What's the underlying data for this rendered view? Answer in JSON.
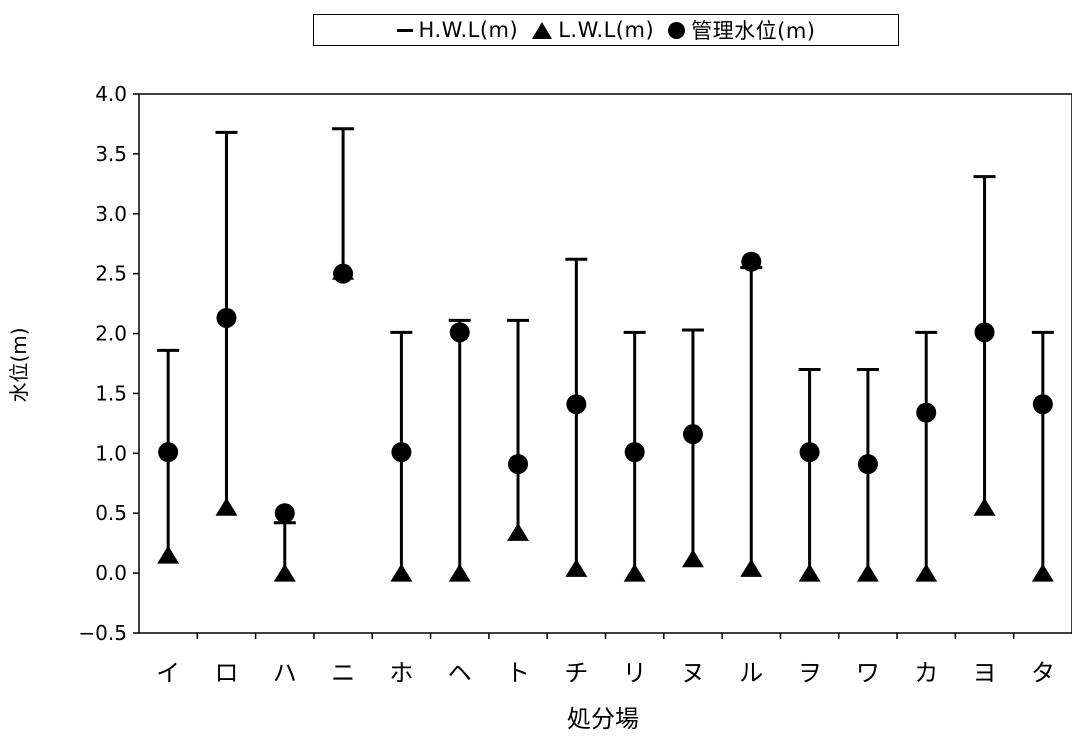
{
  "chart_data": {
    "type": "scatter",
    "xlabel": "処分場",
    "ylabel": "水位(m)",
    "ylim": [
      -0.5,
      4.0
    ],
    "yticks": [
      "4.0",
      "3.5",
      "3.0",
      "2.5",
      "2.0",
      "1.5",
      "1.0",
      "0.5",
      "0.0",
      "-0.5"
    ],
    "categories": [
      "イ",
      "ロ",
      "ハ",
      "ニ",
      "ホ",
      "ヘ",
      "ト",
      "チ",
      "リ",
      "ヌ",
      "ル",
      "ヲ",
      "ワ",
      "カ",
      "ヨ",
      "タ"
    ],
    "series": [
      {
        "name": "H.W.L(m)",
        "marker": "dash",
        "values": [
          1.86,
          3.68,
          0.42,
          3.71,
          2.01,
          2.11,
          2.11,
          2.62,
          2.01,
          2.03,
          2.55,
          1.7,
          1.7,
          2.01,
          3.31,
          2.01
        ]
      },
      {
        "name": "L.W.L(m)",
        "marker": "triangle",
        "values": [
          0.13,
          0.53,
          -0.02,
          2.5,
          -0.02,
          -0.02,
          0.32,
          0.02,
          -0.02,
          0.1,
          0.02,
          -0.02,
          -0.02,
          -0.02,
          0.53,
          -0.02
        ]
      },
      {
        "name": "管理水位(m)",
        "marker": "circle",
        "values": [
          1.01,
          2.13,
          0.5,
          2.5,
          1.01,
          2.01,
          0.91,
          1.41,
          1.01,
          1.16,
          2.6,
          1.01,
          0.91,
          1.34,
          2.01,
          1.41
        ]
      }
    ],
    "grid": false,
    "legend_position": "top"
  },
  "colors": {
    "marks": "#000000",
    "background": "#ffffff"
  }
}
